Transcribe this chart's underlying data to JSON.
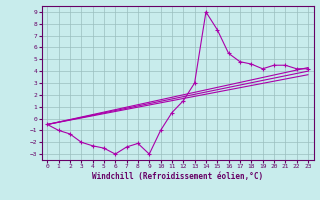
{
  "xlabel": "Windchill (Refroidissement éolien,°C)",
  "bg_color": "#c8ecec",
  "grid_color": "#9bbfbf",
  "line_color": "#aa00aa",
  "axis_color": "#660066",
  "xlim": [
    -0.5,
    23.5
  ],
  "ylim": [
    -3.5,
    9.5
  ],
  "xticks": [
    0,
    1,
    2,
    3,
    4,
    5,
    6,
    7,
    8,
    9,
    10,
    11,
    12,
    13,
    14,
    15,
    16,
    17,
    18,
    19,
    20,
    21,
    22,
    23
  ],
  "yticks": [
    -3,
    -2,
    -1,
    0,
    1,
    2,
    3,
    4,
    5,
    6,
    7,
    8,
    9
  ],
  "series1_x": [
    0,
    1,
    2,
    3,
    4,
    5,
    6,
    7,
    8,
    9,
    10,
    11,
    12,
    13,
    14,
    15,
    16,
    17,
    18,
    19,
    20,
    21,
    22,
    23
  ],
  "series1_y": [
    -0.5,
    -1.0,
    -1.3,
    -2.0,
    -2.3,
    -2.5,
    -3.0,
    -2.4,
    -2.1,
    -3.0,
    -1.0,
    0.5,
    1.5,
    3.0,
    9.0,
    7.5,
    5.5,
    4.8,
    4.6,
    4.2,
    4.5,
    4.5,
    4.2,
    4.2
  ],
  "line2_x": [
    0,
    10,
    23
  ],
  "line2_y": [
    -0.5,
    1.2,
    4.3
  ],
  "line3_x": [
    0,
    10,
    23
  ],
  "line3_y": [
    -0.5,
    0.8,
    4.1
  ],
  "line4_x": [
    0,
    23
  ],
  "line4_y": [
    -0.5,
    4.0
  ]
}
